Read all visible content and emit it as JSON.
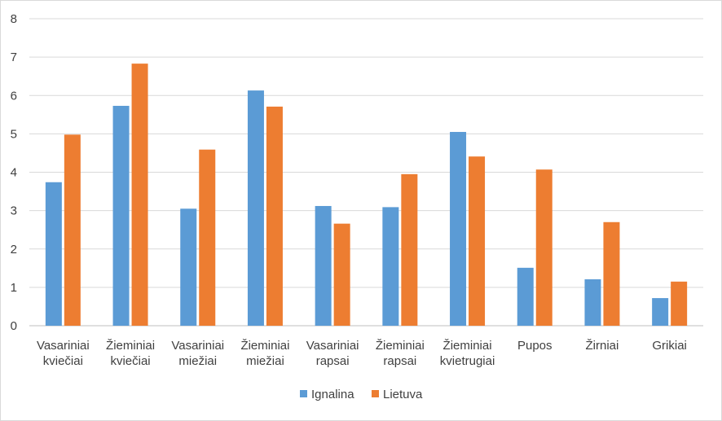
{
  "chart_data": {
    "type": "bar",
    "categories": [
      [
        "Vasariniai",
        "kviečiai"
      ],
      [
        "Žieminiai",
        "kviečiai"
      ],
      [
        "Vasariniai",
        "miežiai"
      ],
      [
        "Žieminiai",
        "miežiai"
      ],
      [
        "Vasariniai",
        "rapsai"
      ],
      [
        "Žieminiai",
        "rapsai"
      ],
      [
        "Žieminiai",
        "kvietrugiai"
      ],
      [
        "Pupos"
      ],
      [
        "Žirniai"
      ],
      [
        "Grikiai"
      ]
    ],
    "series": [
      {
        "name": "Ignalina",
        "color": "#5b9bd5",
        "values": [
          3.74,
          5.73,
          3.05,
          6.13,
          3.12,
          3.09,
          5.05,
          1.51,
          1.21,
          0.72
        ]
      },
      {
        "name": "Lietuva",
        "color": "#ed7d31",
        "values": [
          4.98,
          6.83,
          4.59,
          5.71,
          2.66,
          3.95,
          4.41,
          4.07,
          2.7,
          1.15
        ]
      }
    ],
    "ylim": [
      0,
      8
    ],
    "yticks": [
      "0",
      "1",
      "2",
      "3",
      "4",
      "5",
      "6",
      "7",
      "8"
    ],
    "grid": true,
    "legend_position": "bottom",
    "gridline_color": "#d9d9d9",
    "axis_color": "#bfbfbf"
  }
}
